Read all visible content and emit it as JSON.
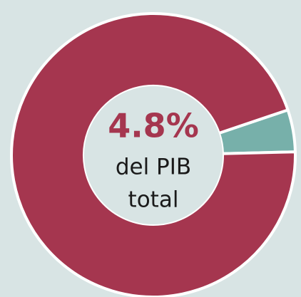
{
  "chart_data": {
    "type": "donut",
    "values": [
      4.8,
      95.2
    ],
    "value_labels": [
      "4.8%"
    ],
    "colors": [
      "#77b0aa",
      "#a5364f"
    ],
    "annotation": [
      "del PIB",
      "total"
    ]
  }
}
